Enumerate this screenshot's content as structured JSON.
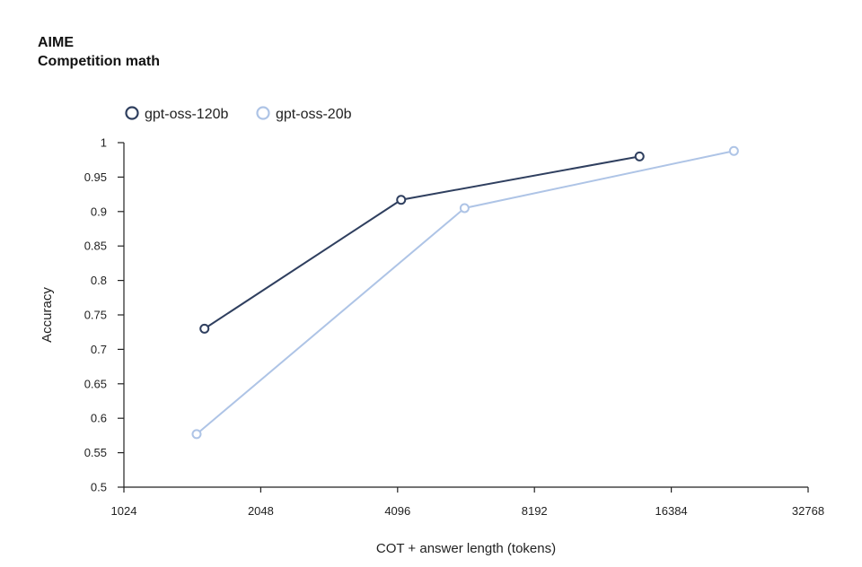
{
  "chart_data": {
    "type": "line",
    "title": "AIME",
    "subtitle": "Competition math",
    "xlabel": "COT + answer length (tokens)",
    "ylabel": "Accuracy",
    "x_scale": "log2",
    "xlim": [
      1024,
      32768
    ],
    "ylim": [
      0.5,
      1.0
    ],
    "x_ticks": [
      1024,
      2048,
      4096,
      8192,
      16384,
      32768
    ],
    "x_tick_labels": [
      "1024",
      "2048",
      "4096",
      "8192",
      "16384",
      "32768"
    ],
    "y_ticks": [
      0.5,
      0.55,
      0.6,
      0.65,
      0.7,
      0.75,
      0.8,
      0.85,
      0.9,
      0.95,
      1.0
    ],
    "y_tick_labels": [
      "0.5",
      "0.55",
      "0.6",
      "0.65",
      "0.7",
      "0.75",
      "0.8",
      "0.85",
      "0.9",
      "0.95",
      "1"
    ],
    "grid": false,
    "legend_position": "top-left",
    "series": [
      {
        "name": "gpt-oss-120b",
        "color": "#2f3f5f",
        "x": [
          1540,
          4170,
          13950
        ],
        "y": [
          0.73,
          0.917,
          0.98
        ]
      },
      {
        "name": "gpt-oss-20b",
        "color": "#aec4e6",
        "x": [
          1480,
          5750,
          22500
        ],
        "y": [
          0.577,
          0.905,
          0.988
        ]
      }
    ]
  }
}
